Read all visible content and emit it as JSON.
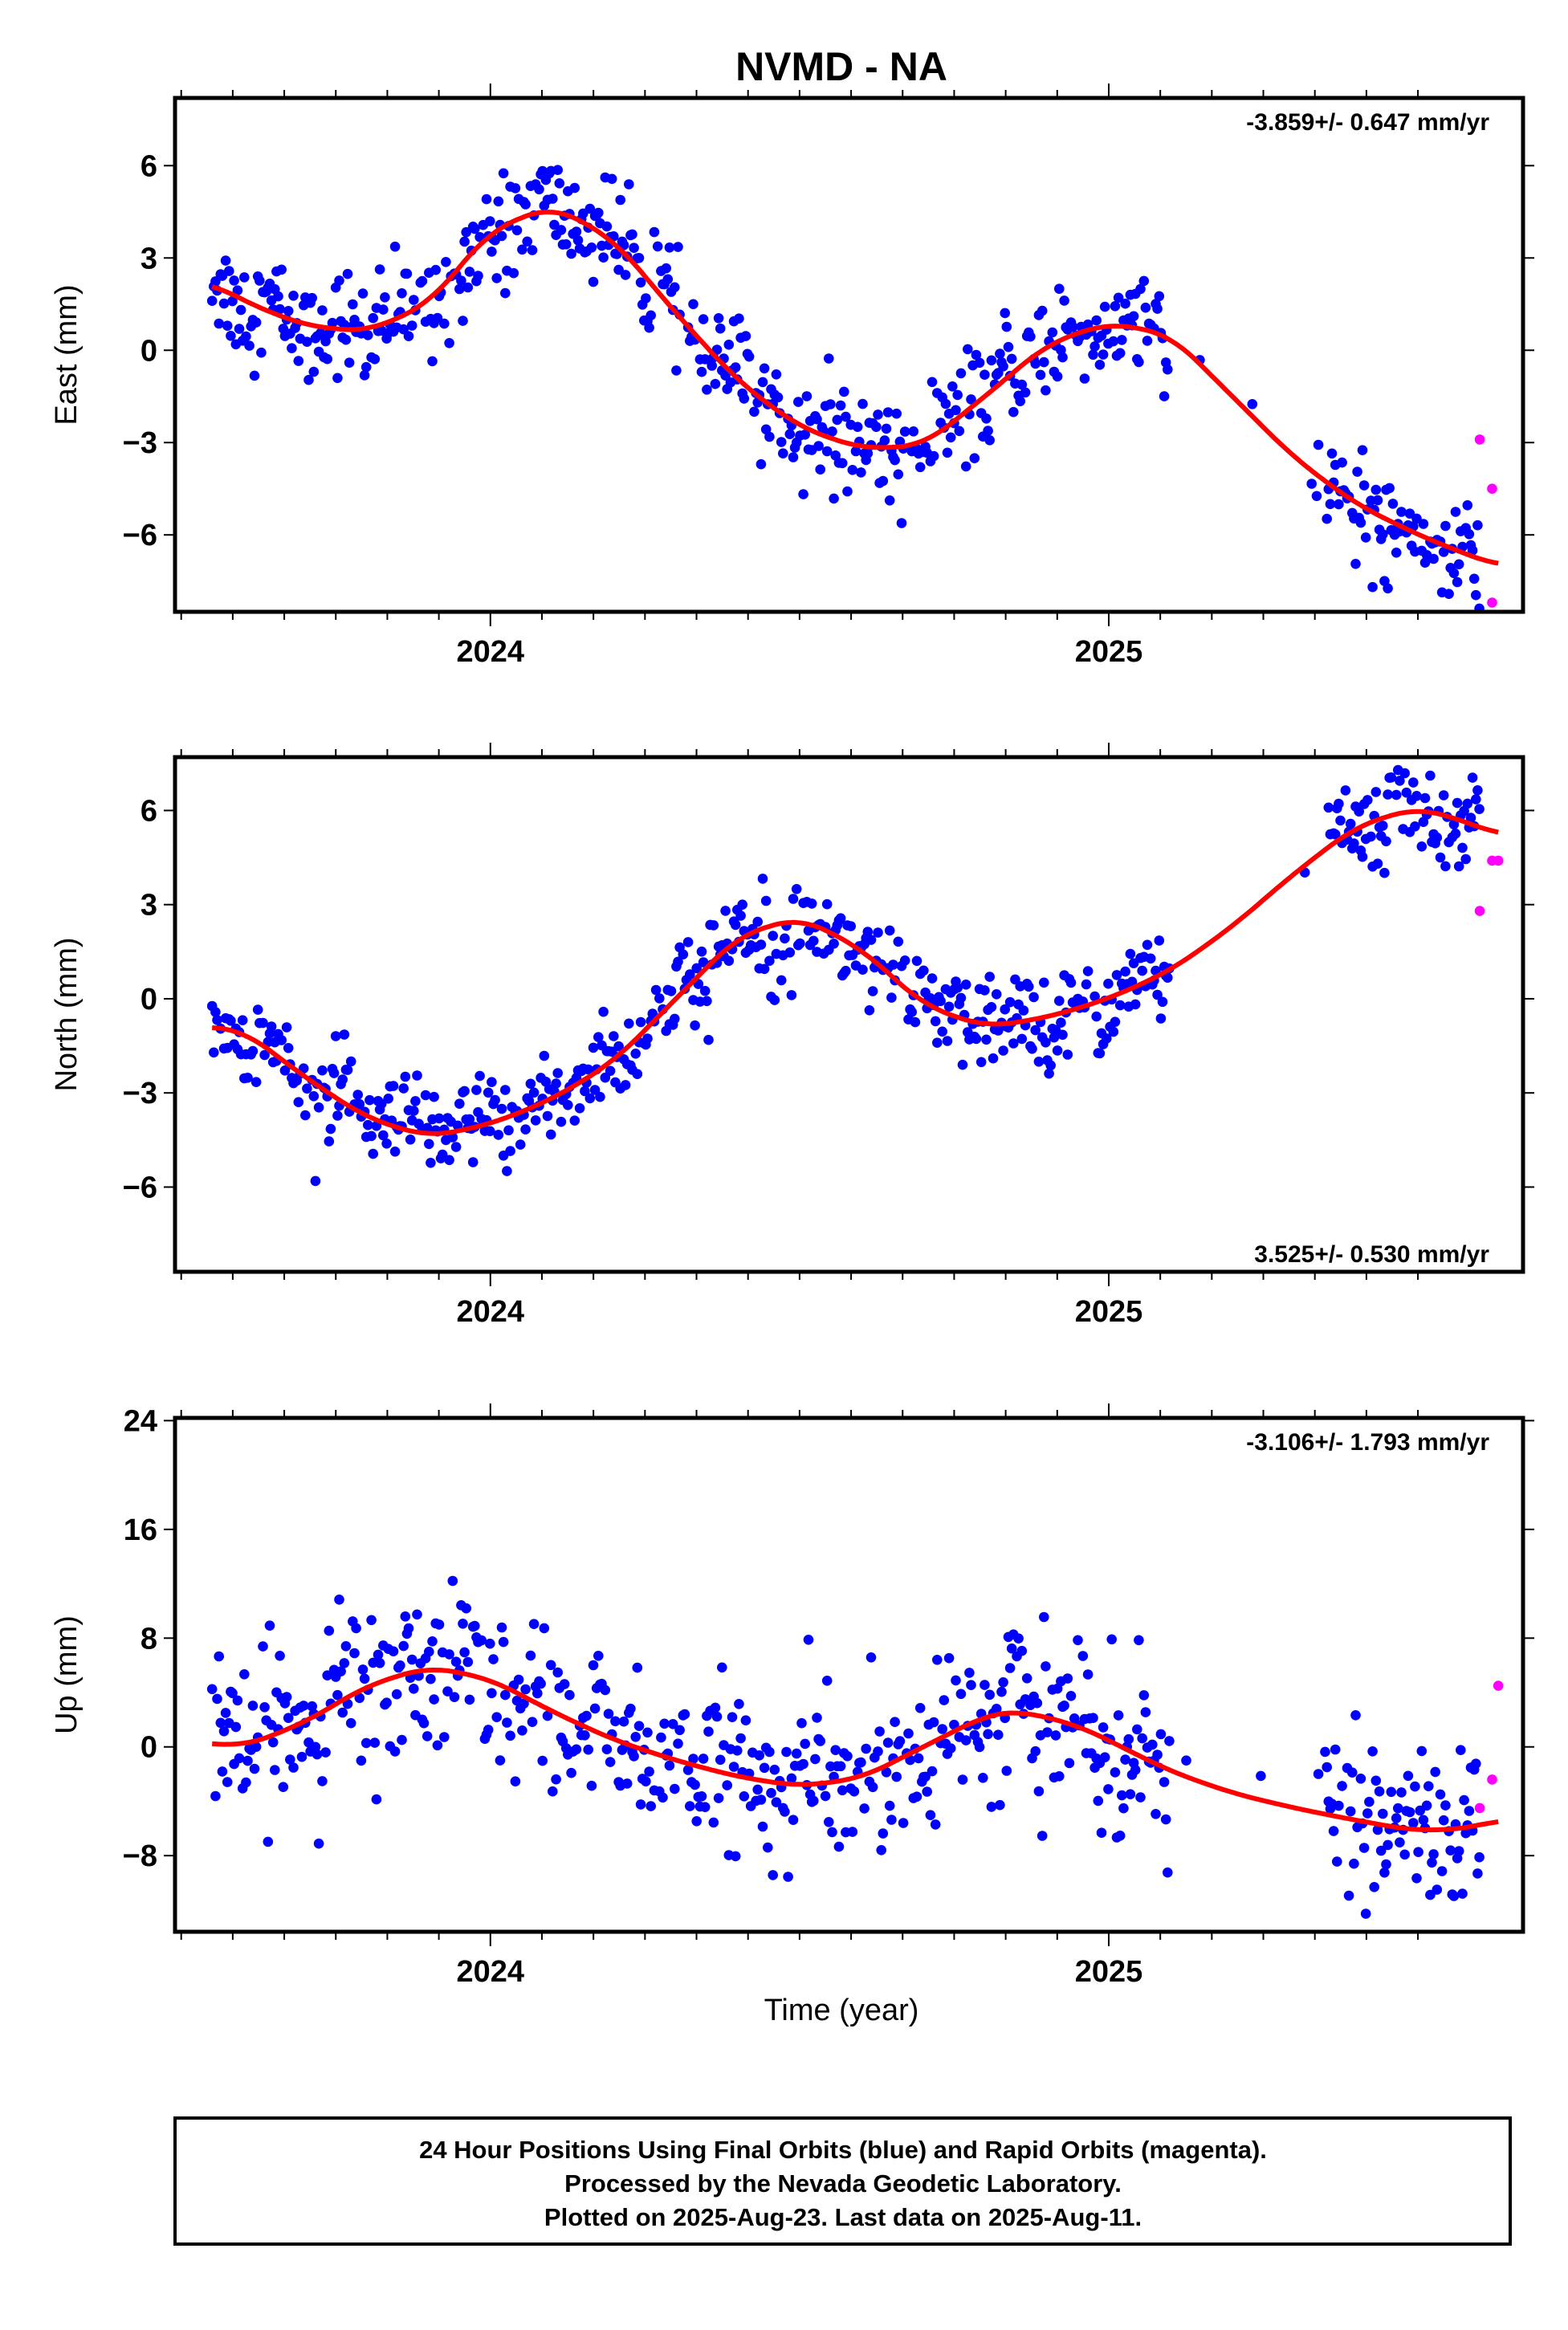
{
  "title": "NVMD - NA",
  "xlabel": "Time (year)",
  "caption": {
    "line1": "24 Hour Positions Using Final Orbits (blue) and Rapid Orbits (magenta).",
    "line2": "Processed by the Nevada Geodetic Laboratory.",
    "line3": "Plotted on 2025-Aug-23. Last data on 2025-Aug-11."
  },
  "colors": {
    "final": "#0000ff",
    "rapid": "#ff00ff",
    "fit": "#ff0000",
    "frame": "#000000"
  },
  "chart_data": [
    {
      "type": "scatter",
      "key": "east",
      "ylabel": "East (mm)",
      "rate": "-3.859+/- 0.647 mm/yr",
      "rate_position": "top-right",
      "xlim": [
        2023.49,
        2025.67
      ],
      "ylim": [
        -8.5,
        8.2
      ],
      "yticks": [
        -6,
        -3,
        0,
        3,
        6
      ],
      "xticks": [
        2024,
        2025
      ],
      "fit_knots": [
        [
          2023.55,
          2.2
        ],
        [
          2023.6,
          1.6
        ],
        [
          2023.7,
          0.8
        ],
        [
          2023.8,
          0.6
        ],
        [
          2023.9,
          1.5
        ],
        [
          2024.0,
          3.9
        ],
        [
          2024.1,
          4.7
        ],
        [
          2024.2,
          3.6
        ],
        [
          2024.3,
          1.2
        ],
        [
          2024.4,
          -1.0
        ],
        [
          2024.5,
          -2.5
        ],
        [
          2024.6,
          -3.2
        ],
        [
          2024.7,
          -3.1
        ],
        [
          2024.8,
          -1.5
        ],
        [
          2024.9,
          0.2
        ],
        [
          2025.0,
          0.9
        ],
        [
          2025.1,
          0.5
        ],
        [
          2025.2,
          -1.5
        ],
        [
          2025.3,
          -3.5
        ],
        [
          2025.4,
          -5.0
        ],
        [
          2025.5,
          -6.0
        ],
        [
          2025.6,
          -6.8
        ],
        [
          2025.63,
          -7.0
        ]
      ],
      "final_scatter": 1.05,
      "rapid_points": [
        [
          2025.6,
          -2.9
        ],
        [
          2025.62,
          -4.5
        ],
        [
          2025.62,
          -8.2
        ]
      ],
      "gap": [
        2025.1,
        2025.35
      ]
    },
    {
      "type": "scatter",
      "key": "north",
      "ylabel": "North (mm)",
      "rate": "3.525+/- 0.530 mm/yr",
      "rate_position": "bottom-right",
      "xlim": [
        2023.49,
        2025.67
      ],
      "ylim": [
        -8.7,
        7.7
      ],
      "yticks": [
        -6,
        -3,
        0,
        3,
        6
      ],
      "xticks": [
        2024,
        2025
      ],
      "fit_knots": [
        [
          2023.55,
          -0.9
        ],
        [
          2023.6,
          -1.0
        ],
        [
          2023.7,
          -2.5
        ],
        [
          2023.8,
          -3.8
        ],
        [
          2023.9,
          -4.4
        ],
        [
          2024.0,
          -4.0
        ],
        [
          2024.1,
          -3.2
        ],
        [
          2024.2,
          -2.0
        ],
        [
          2024.3,
          0.0
        ],
        [
          2024.4,
          2.0
        ],
        [
          2024.5,
          2.6
        ],
        [
          2024.6,
          1.6
        ],
        [
          2024.7,
          -0.2
        ],
        [
          2024.8,
          -0.9
        ],
        [
          2024.9,
          -0.6
        ],
        [
          2025.0,
          0.0
        ],
        [
          2025.1,
          0.9
        ],
        [
          2025.2,
          2.3
        ],
        [
          2025.3,
          4.0
        ],
        [
          2025.4,
          5.5
        ],
        [
          2025.5,
          6.1
        ],
        [
          2025.6,
          5.5
        ],
        [
          2025.63,
          5.2
        ]
      ],
      "final_scatter": 0.9,
      "rapid_points": [
        [
          2025.6,
          2.8
        ],
        [
          2025.62,
          4.4
        ],
        [
          2025.63,
          4.4
        ]
      ],
      "gap": [
        2025.1,
        2025.35
      ]
    },
    {
      "type": "scatter",
      "key": "up",
      "ylabel": "Up (mm)",
      "rate": "-3.106+/- 1.793 mm/yr",
      "rate_position": "top-right",
      "xlim": [
        2023.49,
        2025.67
      ],
      "ylim": [
        -13.6,
        24.2
      ],
      "yticks": [
        -8,
        0,
        8,
        16,
        24
      ],
      "xticks": [
        2024,
        2025
      ],
      "fit_knots": [
        [
          2023.55,
          0.3
        ],
        [
          2023.6,
          0.0
        ],
        [
          2023.7,
          1.8
        ],
        [
          2023.8,
          4.5
        ],
        [
          2023.9,
          5.9
        ],
        [
          2024.0,
          5.0
        ],
        [
          2024.1,
          2.6
        ],
        [
          2024.2,
          0.5
        ],
        [
          2024.3,
          -1.0
        ],
        [
          2024.4,
          -2.2
        ],
        [
          2024.5,
          -2.9
        ],
        [
          2024.6,
          -2.3
        ],
        [
          2024.7,
          0.0
        ],
        [
          2024.8,
          2.3
        ],
        [
          2024.85,
          2.7
        ],
        [
          2024.95,
          1.6
        ],
        [
          2025.1,
          -1.8
        ],
        [
          2025.2,
          -3.4
        ],
        [
          2025.3,
          -4.5
        ],
        [
          2025.4,
          -5.4
        ],
        [
          2025.5,
          -6.2
        ],
        [
          2025.6,
          -5.9
        ],
        [
          2025.63,
          -5.3
        ]
      ],
      "final_scatter": 3.6,
      "rapid_points": [
        [
          2025.6,
          -4.5
        ],
        [
          2025.62,
          -2.4
        ],
        [
          2025.63,
          4.5
        ]
      ],
      "gap": [
        2025.1,
        2025.35
      ]
    }
  ]
}
